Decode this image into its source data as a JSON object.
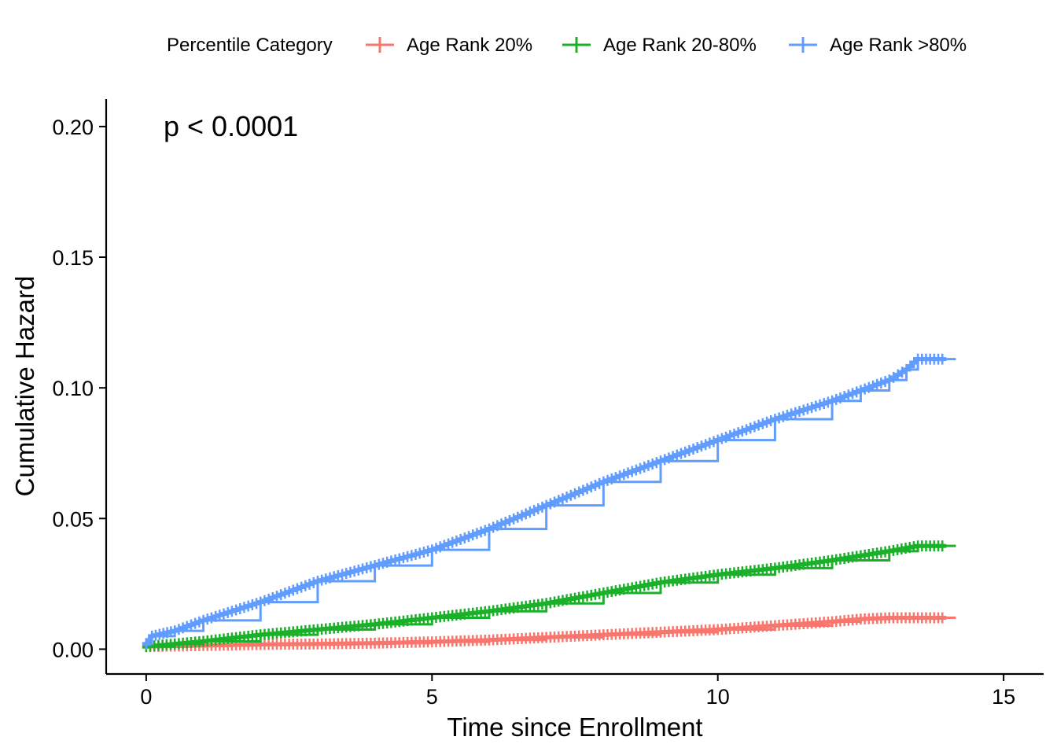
{
  "chart_data": {
    "type": "line",
    "title": "",
    "xlabel": "Time since Enrollment",
    "ylabel": "Cumulative Hazard",
    "xlim": [
      -0.7,
      15.7
    ],
    "ylim": [
      -0.0095,
      0.2105
    ],
    "x_ticks": [
      0,
      5,
      10,
      15
    ],
    "x_tick_labels": [
      "0",
      "5",
      "10",
      "15"
    ],
    "y_ticks": [
      0,
      0.05,
      0.1,
      0.15,
      0.2
    ],
    "y_tick_labels": [
      "0.00",
      "0.05",
      "0.10",
      "0.15",
      "0.20"
    ],
    "grid": false,
    "legend": {
      "title": "Percentile Category",
      "position": "top"
    },
    "annotation": "p < 0.0001",
    "series": [
      {
        "name": "Age Rank 20%",
        "color": "#F8766D",
        "x": [
          0,
          0.5,
          1,
          2,
          3,
          4,
          5,
          6,
          7,
          8,
          9,
          10,
          11,
          12,
          12.5,
          13,
          13.5,
          14
        ],
        "y": [
          0.001,
          0.0012,
          0.0014,
          0.0018,
          0.002,
          0.0023,
          0.0028,
          0.0035,
          0.0045,
          0.0055,
          0.0065,
          0.0075,
          0.009,
          0.0105,
          0.0115,
          0.012,
          0.012,
          0.012
        ]
      },
      {
        "name": "Age Rank 20-80%",
        "color": "#1BB029",
        "x": [
          0,
          0.5,
          1,
          2,
          3,
          4,
          5,
          6,
          7,
          8,
          9,
          10,
          11,
          12,
          13,
          13.5,
          14
        ],
        "y": [
          0.001,
          0.002,
          0.003,
          0.0055,
          0.0075,
          0.0095,
          0.012,
          0.0145,
          0.0175,
          0.0215,
          0.0255,
          0.0285,
          0.031,
          0.034,
          0.0375,
          0.0395,
          0.0395
        ]
      },
      {
        "name": "Age Rank >80%",
        "color": "#619CFF",
        "x": [
          0,
          0.1,
          0.5,
          1,
          2,
          3,
          4,
          5,
          6,
          7,
          8,
          9,
          10,
          11,
          12,
          12.5,
          13,
          13.3,
          13.5,
          14
        ],
        "y": [
          0.002,
          0.005,
          0.007,
          0.011,
          0.018,
          0.026,
          0.032,
          0.038,
          0.046,
          0.055,
          0.064,
          0.072,
          0.08,
          0.088,
          0.095,
          0.099,
          0.103,
          0.107,
          0.111,
          0.111
        ]
      }
    ]
  }
}
